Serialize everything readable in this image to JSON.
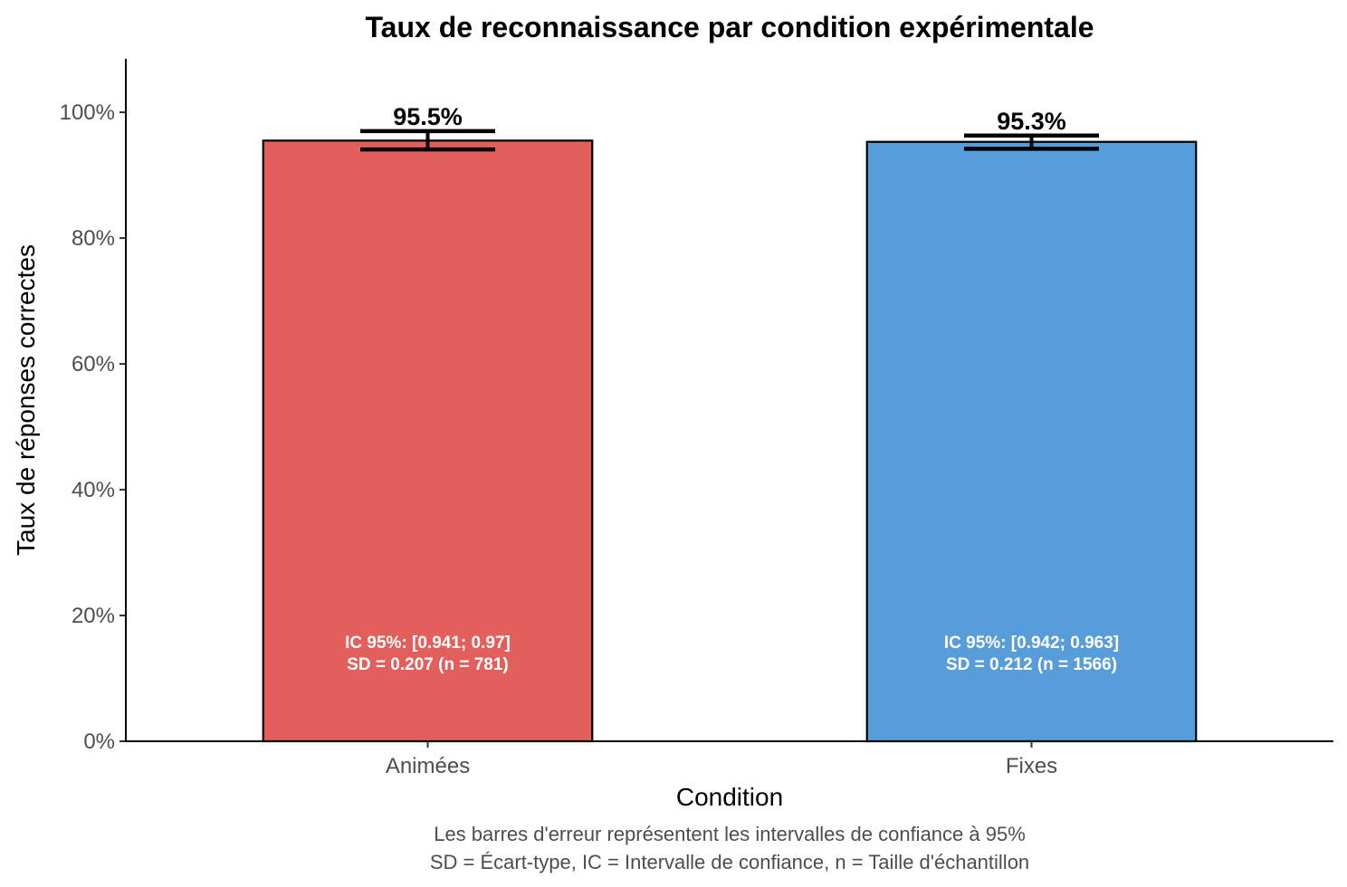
{
  "chart_data": {
    "type": "bar",
    "title": "Taux de reconnaissance par condition expérimentale",
    "xlabel": "Condition",
    "ylabel": "Taux de réponses correctes",
    "categories": [
      "Animées",
      "Fixes"
    ],
    "values": [
      0.955,
      0.953
    ],
    "value_labels": [
      "95.5%",
      "95.3%"
    ],
    "ci": [
      [
        0.941,
        0.97
      ],
      [
        0.942,
        0.963
      ]
    ],
    "annotations": [
      [
        "IC 95%: [0.941; 0.97]",
        "SD = 0.207 (n = 781)"
      ],
      [
        "IC 95%: [0.942; 0.963]",
        "SD = 0.212 (n = 1566)"
      ]
    ],
    "colors": [
      "#E35F5B",
      "#579DDA"
    ],
    "ylim": [
      0,
      1.085
    ],
    "yticks": [
      0,
      0.2,
      0.4,
      0.6,
      0.8,
      1.0
    ],
    "ytick_labels": [
      "0%",
      "20%",
      "40%",
      "60%",
      "80%",
      "100%"
    ],
    "grid": false,
    "legend": "none",
    "caption": [
      "Les barres d'erreur représentent les intervalles de confiance à 95%",
      "SD = Écart-type, IC = Intervalle de confiance, n = Taille d'échantillon"
    ]
  }
}
